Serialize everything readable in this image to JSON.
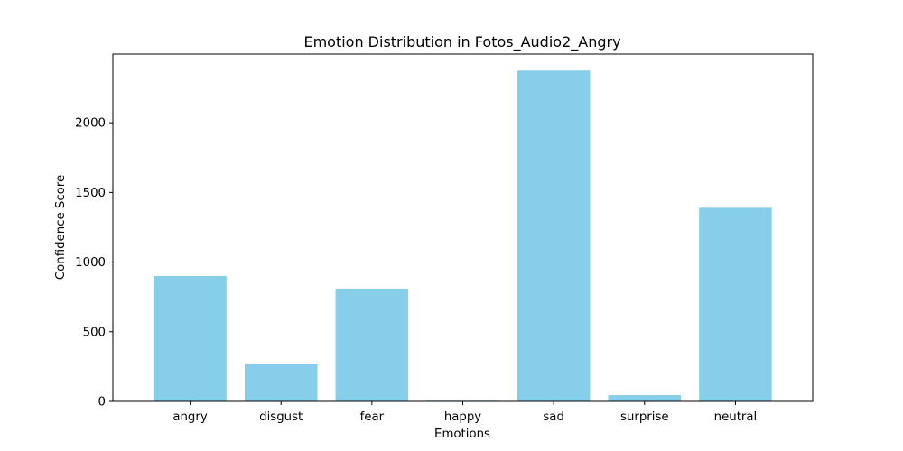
{
  "chart_data": {
    "type": "bar",
    "title": "Emotion Distribution in Fotos_Audio2_Angry",
    "xlabel": "Emotions",
    "ylabel": "Confidence Score",
    "categories": [
      "angry",
      "disgust",
      "fear",
      "happy",
      "sad",
      "surprise",
      "neutral"
    ],
    "values": [
      900,
      272,
      810,
      5,
      2375,
      45,
      1390
    ],
    "ylim": [
      0,
      2493
    ],
    "yticks": [
      0,
      500,
      1000,
      1500,
      2000
    ],
    "grid": false,
    "bar_color": "#87ceeb"
  }
}
